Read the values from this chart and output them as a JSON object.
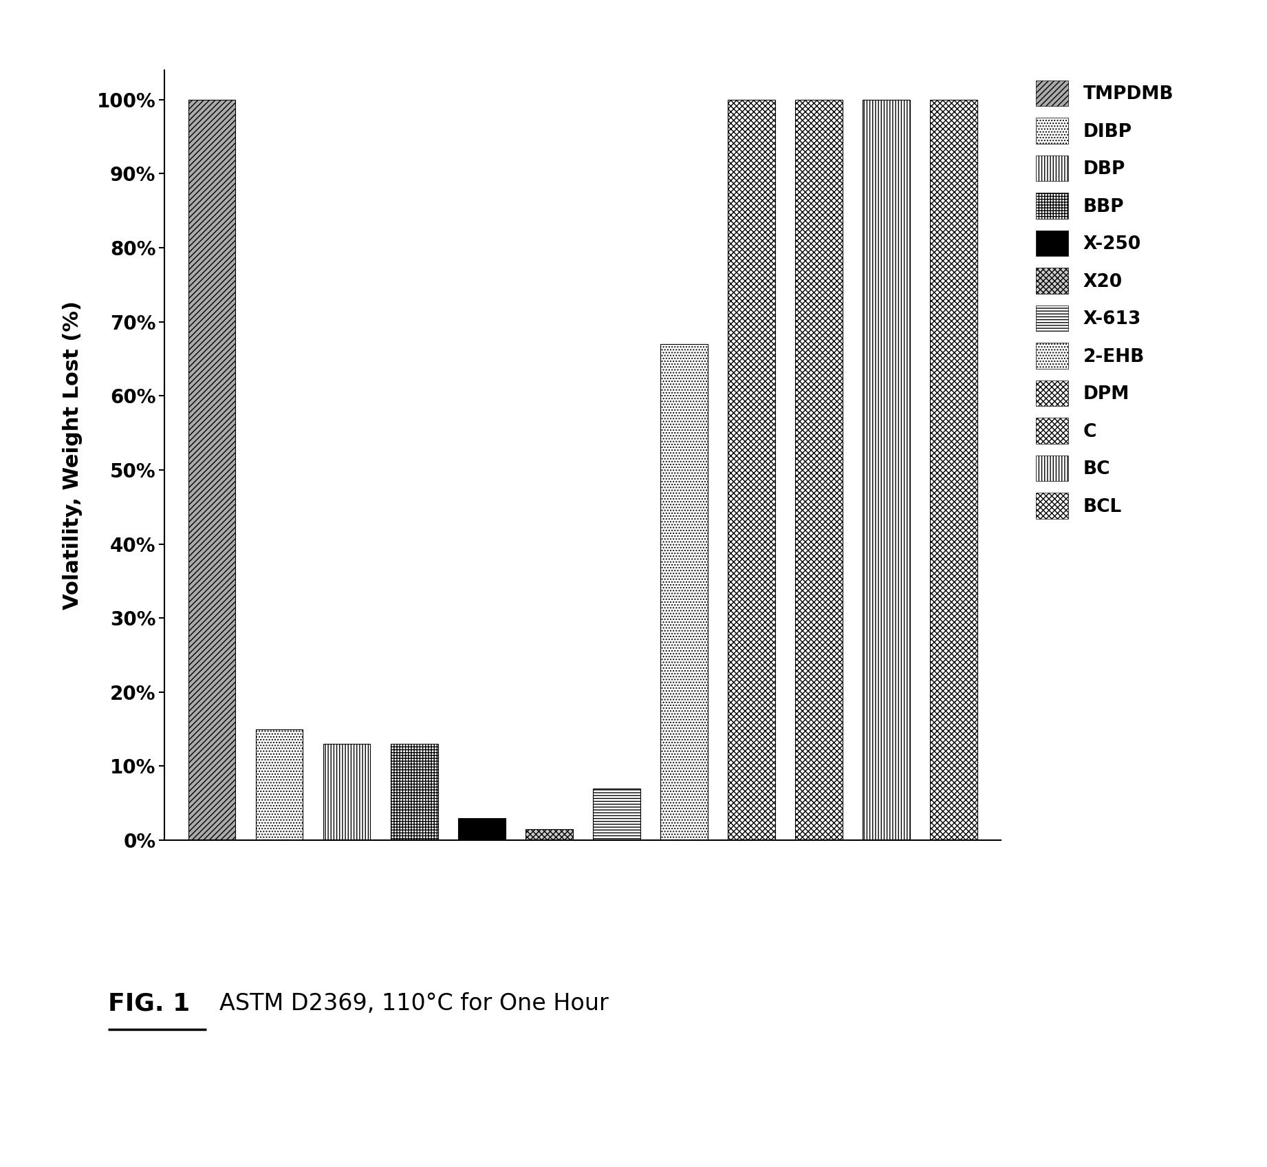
{
  "categories": [
    "TMPDMB",
    "DIBP",
    "DBP",
    "BBP",
    "X-250",
    "X20",
    "X-613",
    "2-EHB",
    "DPM",
    "C",
    "BC",
    "BCL"
  ],
  "values": [
    100,
    15,
    13,
    13,
    3,
    1.5,
    7,
    67,
    100,
    100,
    100,
    100
  ],
  "ylabel": "Volatility, Weight Lost (%)",
  "caption_bold": "FIG. 1",
  "caption_text": "ASTM D2369, 110°C for One Hour",
  "ylim": [
    0,
    100
  ],
  "yticks": [
    0,
    10,
    20,
    30,
    40,
    50,
    60,
    70,
    80,
    90,
    100
  ],
  "ytick_labels": [
    "0%",
    "10%",
    "20%",
    "30%",
    "40%",
    "50%",
    "60%",
    "70%",
    "80%",
    "90%",
    "100%"
  ],
  "bar_width": 0.7,
  "background_color": "#ffffff",
  "legend_labels": [
    "TMPDMB",
    "DIBP",
    "DBP",
    "BBP",
    "X-250",
    "X20",
    "X-613",
    "2-EHB",
    "DPM",
    "C",
    "BC",
    "BCL"
  ],
  "hatch_list": [
    "////",
    "....",
    "||||",
    "++++",
    "",
    "xxxx",
    "----",
    "....",
    "xxxx",
    "xxxx",
    "||||",
    "xxxx"
  ],
  "face_colors": [
    "#aaaaaa",
    "#ffffff",
    "#ffffff",
    "#ffffff",
    "#000000",
    "#cccccc",
    "#ffffff",
    "#ffffff",
    "#ffffff",
    "#ffffff",
    "#ffffff",
    "#ffffff"
  ],
  "edge_colors": [
    "#000000",
    "#000000",
    "#000000",
    "#000000",
    "#000000",
    "#000000",
    "#000000",
    "#000000",
    "#000000",
    "#000000",
    "#000000",
    "#000000"
  ]
}
